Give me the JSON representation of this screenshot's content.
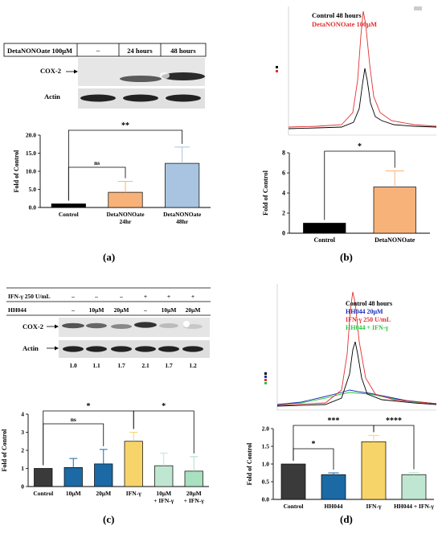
{
  "panels": {
    "a": {
      "label": "(a)",
      "header": {
        "treatment": "DetaNONOate 100μM",
        "cols": [
          "–",
          "24 hours",
          "48 hours"
        ]
      },
      "rows": [
        "COX-2",
        "Actin"
      ],
      "chart_data": {
        "type": "bar",
        "categories": [
          "Control",
          "DetaNONOate\n24hr",
          "DetaNONOate\n48hr"
        ],
        "values": [
          1.0,
          4.2,
          12.2
        ],
        "errors": [
          0.0,
          3.0,
          4.5
        ],
        "colors": [
          "#000000",
          "#f7b27a",
          "#a9c4e0"
        ],
        "ylabel": "Fold of Control",
        "ylim": [
          0,
          20
        ],
        "yticks": [
          "0.0",
          "5.0",
          "10.0",
          "15.0",
          "20.0"
        ],
        "significance": [
          {
            "text": "ns"
          },
          {
            "text": "**"
          }
        ]
      }
    },
    "b": {
      "label": "(b)",
      "trace": {
        "legend": [
          "Control 48 hours",
          "DetaNONOate 100μM"
        ],
        "colors": [
          "#000000",
          "#e23030"
        ]
      },
      "chart_data": {
        "type": "bar",
        "categories": [
          "Control",
          "DetaNONOate"
        ],
        "values": [
          1.0,
          4.6
        ],
        "errors": [
          0.0,
          1.6
        ],
        "colors": [
          "#000000",
          "#f7b27a"
        ],
        "ylabel": "Fold of Control",
        "ylim": [
          0,
          8
        ],
        "yticks": [
          "0",
          "2",
          "4",
          "6",
          "8"
        ],
        "significance": [
          {
            "text": "*"
          }
        ]
      }
    },
    "c": {
      "label": "(c)",
      "header": {
        "rows": [
          {
            "name": "IFN-γ 250 U/mL",
            "cells": [
              "–",
              "–",
              "–",
              "+",
              "+",
              "+"
            ]
          },
          {
            "name": "HH044",
            "cells": [
              "–",
              "10μM",
              "20μM",
              "–",
              "10μM",
              "20μM"
            ]
          }
        ]
      },
      "rows": [
        "COX-2",
        "Actin"
      ],
      "densities": [
        "1.0",
        "1.1",
        "1.7",
        "2.1",
        "1.7",
        "1.2"
      ],
      "chart_data": {
        "type": "bar",
        "categories": [
          "Control",
          "10μM",
          "20μM",
          "IFN-γ",
          "10μM\n+ IFN-γ",
          "20μM\n+ IFN-γ"
        ],
        "values": [
          1.0,
          1.05,
          1.25,
          2.5,
          1.15,
          0.85
        ],
        "errors": [
          0.0,
          0.5,
          0.8,
          0.5,
          0.7,
          0.8
        ],
        "colors": [
          "#3a3a3a",
          "#1b6aa5",
          "#1b6aa5",
          "#f7d46a",
          "#bfe6d1",
          "#a8e0c0"
        ],
        "ylabel": "Fold of Control",
        "ylim": [
          0,
          4
        ],
        "yticks": [
          "0",
          "1",
          "2",
          "3",
          "4"
        ],
        "significance": [
          {
            "text": "ns"
          },
          {
            "text": "*"
          },
          {
            "text": "*"
          }
        ]
      }
    },
    "d": {
      "label": "(d)",
      "trace": {
        "legend": [
          "Control 48 hours",
          "HH044 20μM",
          "IFN-γ 250 U/mL",
          "HH044 + IFN-γ"
        ],
        "colors": [
          "#000000",
          "#1b2fb5",
          "#e23030",
          "#27c840"
        ]
      },
      "chart_data": {
        "type": "bar",
        "categories": [
          "Control",
          "HH044",
          "IFN-γ",
          "HH044 + IFN-γ"
        ],
        "values": [
          1.0,
          0.7,
          1.63,
          0.7
        ],
        "errors": [
          0.0,
          0.05,
          0.18,
          0.06
        ],
        "colors": [
          "#3a3a3a",
          "#1b6aa5",
          "#f7d46a",
          "#bfe6d1"
        ],
        "ylabel": "Fold of Control",
        "ylim": [
          0,
          2.0
        ],
        "yticks": [
          "0.0",
          "0.5",
          "1.0",
          "1.5",
          "2.0"
        ],
        "significance": [
          {
            "text": "*"
          },
          {
            "text": "***"
          },
          {
            "text": "****"
          }
        ]
      }
    }
  }
}
